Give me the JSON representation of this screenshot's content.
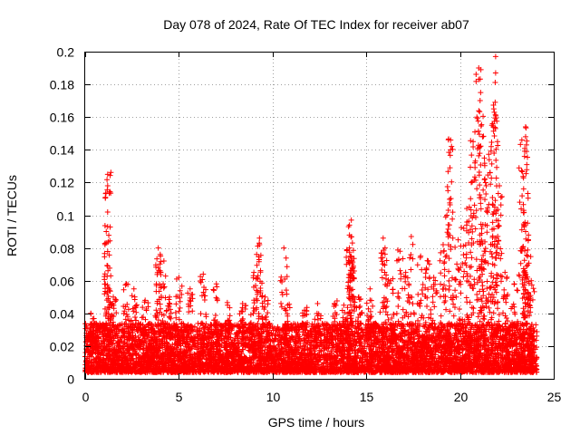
{
  "chart_data": {
    "type": "scatter",
    "title": "Day 078 of 2024, Rate Of TEC Index for receiver ab07",
    "xlabel": "GPS time / hours",
    "ylabel": "ROTI / TECUs",
    "xlim": [
      0,
      25
    ],
    "ylim": [
      0,
      0.2
    ],
    "xticks": [
      0,
      5,
      10,
      15,
      20,
      25
    ],
    "yticks": [
      0,
      0.02,
      0.04,
      0.06,
      0.08,
      0.1,
      0.12,
      0.14,
      0.16,
      0.18,
      0.2
    ],
    "grid": true,
    "marker": "plus",
    "marker_color": "#ff0000",
    "background_samples": {
      "x_range": [
        0,
        24.1
      ],
      "typical_max": 0.03,
      "count": 9000
    },
    "hotspots": [
      {
        "x": 0.3,
        "y": 0.04
      },
      {
        "x": 1.2,
        "y": 0.125
      },
      {
        "x": 1.2,
        "y": 0.118
      },
      {
        "x": 1.2,
        "y": 0.093
      },
      {
        "x": 1.2,
        "y": 0.069
      },
      {
        "x": 1.5,
        "y": 0.05
      },
      {
        "x": 2.2,
        "y": 0.058
      },
      {
        "x": 2.6,
        "y": 0.055
      },
      {
        "x": 3.2,
        "y": 0.048
      },
      {
        "x": 3.9,
        "y": 0.08
      },
      {
        "x": 3.9,
        "y": 0.068
      },
      {
        "x": 4.2,
        "y": 0.072
      },
      {
        "x": 4.5,
        "y": 0.05
      },
      {
        "x": 5.0,
        "y": 0.062
      },
      {
        "x": 5.6,
        "y": 0.055
      },
      {
        "x": 6.3,
        "y": 0.064
      },
      {
        "x": 7.0,
        "y": 0.058
      },
      {
        "x": 7.6,
        "y": 0.045
      },
      {
        "x": 8.4,
        "y": 0.046
      },
      {
        "x": 9.0,
        "y": 0.065
      },
      {
        "x": 9.3,
        "y": 0.086
      },
      {
        "x": 9.3,
        "y": 0.082
      },
      {
        "x": 9.6,
        "y": 0.05
      },
      {
        "x": 10.6,
        "y": 0.08
      },
      {
        "x": 10.8,
        "y": 0.045
      },
      {
        "x": 11.7,
        "y": 0.042
      },
      {
        "x": 12.4,
        "y": 0.046
      },
      {
        "x": 13.3,
        "y": 0.046
      },
      {
        "x": 13.8,
        "y": 0.045
      },
      {
        "x": 14.2,
        "y": 0.097
      },
      {
        "x": 14.1,
        "y": 0.094
      },
      {
        "x": 14.1,
        "y": 0.08
      },
      {
        "x": 14.2,
        "y": 0.075
      },
      {
        "x": 14.3,
        "y": 0.068
      },
      {
        "x": 14.6,
        "y": 0.05
      },
      {
        "x": 15.2,
        "y": 0.055
      },
      {
        "x": 15.9,
        "y": 0.086
      },
      {
        "x": 16.0,
        "y": 0.08
      },
      {
        "x": 16.3,
        "y": 0.06
      },
      {
        "x": 16.8,
        "y": 0.078
      },
      {
        "x": 17.1,
        "y": 0.065
      },
      {
        "x": 17.4,
        "y": 0.087
      },
      {
        "x": 17.9,
        "y": 0.075
      },
      {
        "x": 18.3,
        "y": 0.072
      },
      {
        "x": 18.6,
        "y": 0.062
      },
      {
        "x": 19.1,
        "y": 0.082
      },
      {
        "x": 19.3,
        "y": 0.1
      },
      {
        "x": 19.5,
        "y": 0.146
      },
      {
        "x": 19.5,
        "y": 0.14
      },
      {
        "x": 19.9,
        "y": 0.085
      },
      {
        "x": 20.2,
        "y": 0.092
      },
      {
        "x": 20.5,
        "y": 0.105
      },
      {
        "x": 20.6,
        "y": 0.12
      },
      {
        "x": 20.7,
        "y": 0.145
      },
      {
        "x": 20.9,
        "y": 0.16
      },
      {
        "x": 21.0,
        "y": 0.19
      },
      {
        "x": 21.0,
        "y": 0.183
      },
      {
        "x": 21.1,
        "y": 0.175
      },
      {
        "x": 21.2,
        "y": 0.148
      },
      {
        "x": 21.3,
        "y": 0.135
      },
      {
        "x": 21.4,
        "y": 0.118
      },
      {
        "x": 21.6,
        "y": 0.126
      },
      {
        "x": 21.7,
        "y": 0.155
      },
      {
        "x": 21.8,
        "y": 0.165
      },
      {
        "x": 21.9,
        "y": 0.197
      },
      {
        "x": 21.9,
        "y": 0.187
      },
      {
        "x": 22.0,
        "y": 0.145
      },
      {
        "x": 22.1,
        "y": 0.118
      },
      {
        "x": 22.4,
        "y": 0.065
      },
      {
        "x": 22.9,
        "y": 0.058
      },
      {
        "x": 23.3,
        "y": 0.146
      },
      {
        "x": 23.5,
        "y": 0.154
      },
      {
        "x": 23.5,
        "y": 0.148
      },
      {
        "x": 23.4,
        "y": 0.103
      },
      {
        "x": 23.5,
        "y": 0.09
      },
      {
        "x": 23.6,
        "y": 0.075
      },
      {
        "x": 23.8,
        "y": 0.06
      }
    ]
  }
}
